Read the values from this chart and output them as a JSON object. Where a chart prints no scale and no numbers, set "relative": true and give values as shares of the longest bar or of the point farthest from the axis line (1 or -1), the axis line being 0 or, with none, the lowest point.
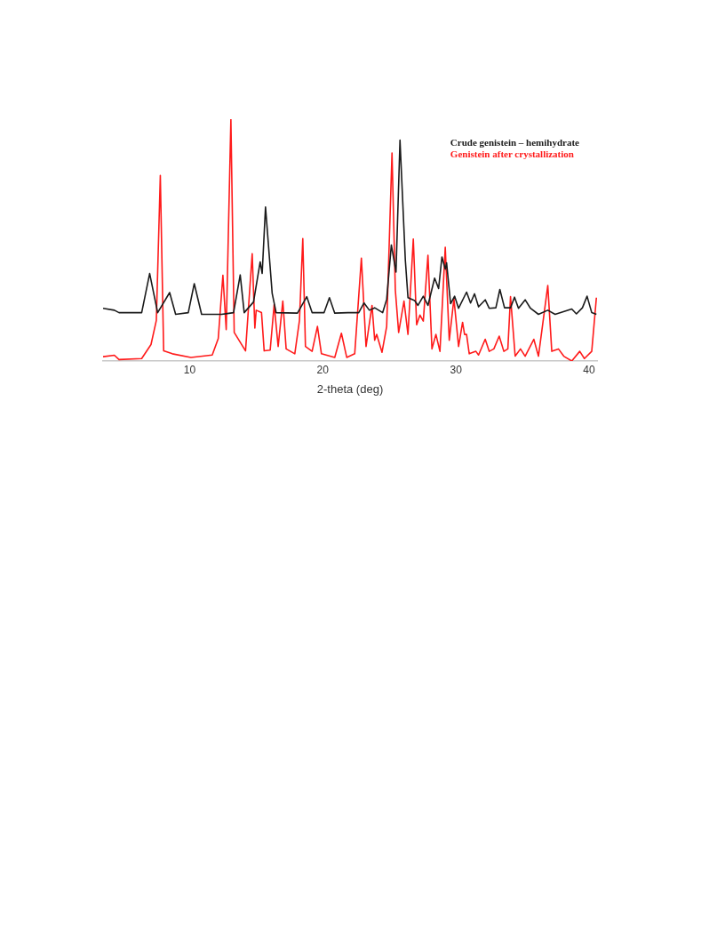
{
  "chart_data": {
    "type": "line",
    "xlabel": "2-theta (deg)",
    "relative": true,
    "xlim": [
      3.5,
      40.6
    ],
    "xticks": [
      10,
      20,
      30,
      40
    ],
    "grid": false,
    "legend": "top right",
    "marker": "none",
    "series": [
      {
        "name": "Crude genistein – hemihydrate",
        "color": "#1a1a1a",
        "x": [
          3.5,
          4.35,
          4.7,
          6.4,
          7.0,
          7.6,
          8.5,
          8.95,
          9.9,
          10.35,
          10.9,
          12.4,
          13.3,
          13.8,
          14.1,
          14.8,
          15.3,
          15.45,
          15.7,
          16.2,
          16.5,
          18.1,
          18.8,
          19.2,
          20.1,
          20.5,
          20.9,
          21.9,
          22.7,
          23.1,
          23.5,
          23.9,
          24.5,
          24.8,
          25.15,
          25.5,
          25.8,
          26.2,
          26.4,
          26.9,
          27.15,
          27.55,
          27.9,
          28.4,
          28.7,
          28.95,
          29.2,
          29.3,
          29.6,
          29.9,
          30.2,
          30.8,
          31.1,
          31.4,
          31.7,
          32.2,
          32.5,
          33.0,
          33.3,
          33.65,
          34.1,
          34.4,
          34.7,
          35.2,
          35.6,
          36.2,
          36.9,
          37.45,
          38.7,
          39.05,
          39.5,
          39.85,
          40.2,
          40.55
        ],
        "values": [
          0.218,
          0.21,
          0.2,
          0.2,
          0.362,
          0.2,
          0.283,
          0.193,
          0.2,
          0.32,
          0.193,
          0.193,
          0.2,
          0.356,
          0.2,
          0.244,
          0.41,
          0.362,
          0.637,
          0.28,
          0.2,
          0.198,
          0.266,
          0.2,
          0.2,
          0.262,
          0.198,
          0.2,
          0.2,
          0.24,
          0.21,
          0.22,
          0.2,
          0.255,
          0.48,
          0.368,
          0.913,
          0.418,
          0.262,
          0.25,
          0.23,
          0.268,
          0.23,
          0.343,
          0.3,
          0.43,
          0.38,
          0.406,
          0.237,
          0.268,
          0.218,
          0.285,
          0.24,
          0.278,
          0.224,
          0.253,
          0.218,
          0.22,
          0.296,
          0.22,
          0.22,
          0.264,
          0.218,
          0.253,
          0.218,
          0.193,
          0.21,
          0.193,
          0.215,
          0.195,
          0.22,
          0.268,
          0.2,
          0.193
        ]
      },
      {
        "name": "Genistein after crystallization",
        "color": "#ff1a1a",
        "x": [
          3.5,
          4.35,
          4.7,
          6.4,
          7.1,
          7.5,
          7.8,
          8.05,
          8.7,
          10.1,
          11.7,
          12.15,
          12.5,
          12.75,
          13.1,
          13.35,
          14.2,
          14.7,
          14.9,
          15.0,
          15.4,
          15.6,
          16.05,
          16.35,
          16.65,
          17.0,
          17.25,
          17.9,
          18.25,
          18.5,
          18.7,
          19.2,
          19.6,
          19.9,
          20.9,
          21.4,
          21.8,
          22.4,
          22.9,
          23.25,
          23.7,
          23.9,
          24.05,
          24.45,
          24.8,
          25.2,
          25.45,
          25.7,
          26.1,
          26.4,
          26.8,
          27.05,
          27.3,
          27.55,
          27.9,
          28.2,
          28.5,
          28.8,
          29.2,
          29.5,
          29.85,
          30.2,
          30.5,
          30.65,
          30.8,
          31.0,
          31.5,
          31.7,
          32.2,
          32.5,
          32.85,
          33.25,
          33.6,
          33.9,
          34.1,
          34.45,
          34.85,
          35.2,
          35.85,
          36.2,
          36.9,
          37.2,
          37.7,
          38.1,
          38.7,
          39.3,
          39.65,
          40.2,
          40.55
        ],
        "values": [
          0.018,
          0.024,
          0.006,
          0.01,
          0.068,
          0.168,
          0.767,
          0.042,
          0.03,
          0.015,
          0.025,
          0.093,
          0.355,
          0.13,
          1.0,
          0.118,
          0.042,
          0.444,
          0.136,
          0.21,
          0.2,
          0.042,
          0.045,
          0.233,
          0.06,
          0.248,
          0.05,
          0.03,
          0.168,
          0.506,
          0.06,
          0.04,
          0.143,
          0.03,
          0.015,
          0.115,
          0.015,
          0.03,
          0.425,
          0.06,
          0.23,
          0.086,
          0.11,
          0.036,
          0.143,
          0.86,
          0.293,
          0.118,
          0.248,
          0.11,
          0.504,
          0.15,
          0.19,
          0.165,
          0.437,
          0.05,
          0.11,
          0.04,
          0.47,
          0.086,
          0.258,
          0.06,
          0.16,
          0.11,
          0.11,
          0.03,
          0.04,
          0.025,
          0.09,
          0.04,
          0.05,
          0.103,
          0.04,
          0.05,
          0.266,
          0.02,
          0.05,
          0.02,
          0.09,
          0.02,
          0.312,
          0.04,
          0.05,
          0.02,
          0.0,
          0.04,
          0.01,
          0.04,
          0.262
        ]
      }
    ]
  }
}
